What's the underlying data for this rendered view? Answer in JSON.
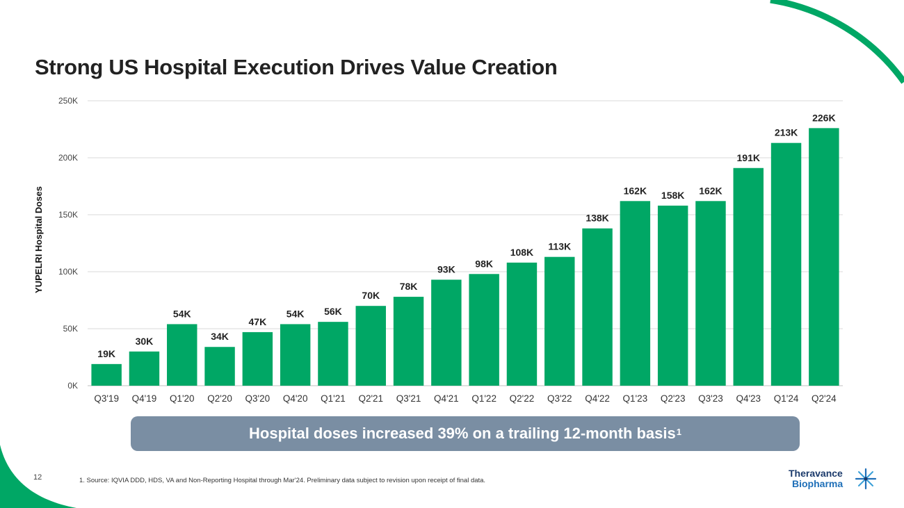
{
  "slide": {
    "title": "Strong US Hospital Execution Drives Value Creation",
    "page_number": "12"
  },
  "callout": {
    "text": "Hospital doses increased 39% on a trailing 12-month basis",
    "footnote_marker": "1"
  },
  "footnote": "1. Source: IQVIA DDD, HDS, VA and Non-Reporting Hospital through Mar'24. Preliminary data subject to revision upon receipt of final data.",
  "logo": {
    "line1": "Theravance",
    "line2": "Biopharma",
    "icon": "star-burst-icon"
  },
  "colors": {
    "bar": "#00a765",
    "accent_arc": "#00a765",
    "callout_bg": "#7a8ea3",
    "grid": "#d9d9d9"
  },
  "chart_data": {
    "type": "bar",
    "title": "",
    "xlabel": "",
    "ylabel": "YUPELRI Hospital Doses",
    "categories": [
      "Q3'19",
      "Q4'19",
      "Q1'20",
      "Q2'20",
      "Q3'20",
      "Q4'20",
      "Q1'21",
      "Q2'21",
      "Q3'21",
      "Q4'21",
      "Q1'22",
      "Q2'22",
      "Q3'22",
      "Q4'22",
      "Q1'23",
      "Q2'23",
      "Q3'23",
      "Q4'23",
      "Q1'24",
      "Q2'24"
    ],
    "values": [
      19000,
      30000,
      54000,
      34000,
      47000,
      54000,
      56000,
      70000,
      78000,
      93000,
      98000,
      108000,
      113000,
      138000,
      162000,
      158000,
      162000,
      191000,
      213000,
      226000
    ],
    "data_labels": [
      "19K",
      "30K",
      "54K",
      "34K",
      "47K",
      "54K",
      "56K",
      "70K",
      "78K",
      "93K",
      "98K",
      "108K",
      "113K",
      "138K",
      "162K",
      "158K",
      "162K",
      "191K",
      "213K",
      "226K"
    ],
    "ylim": [
      0,
      250000
    ],
    "yticks": [
      0,
      50000,
      100000,
      150000,
      200000,
      250000
    ],
    "ytick_labels": [
      "0K",
      "50K",
      "100K",
      "150K",
      "200K",
      "250K"
    ],
    "grid": true,
    "legend": "none"
  }
}
